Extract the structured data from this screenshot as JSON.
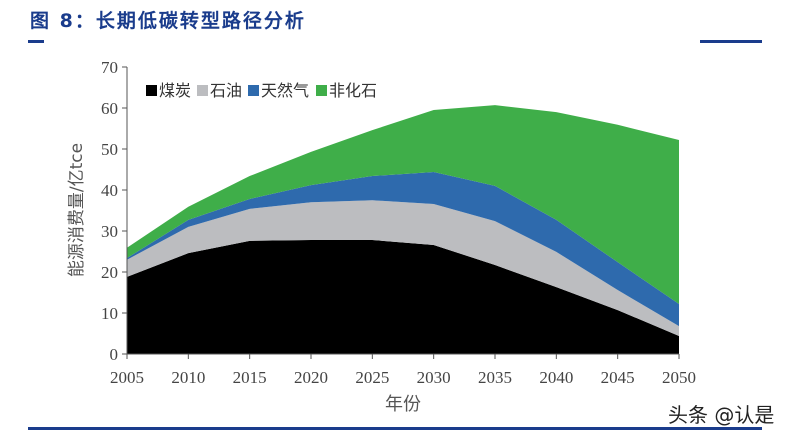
{
  "title": "图 8：长期低碳转型路径分析",
  "watermark": "头条 @认是",
  "chart_data": {
    "type": "area",
    "stacked": true,
    "title": "",
    "xlabel": "年份",
    "ylabel": "能源消费量/亿tce",
    "x": [
      2005,
      2010,
      2015,
      2020,
      2025,
      2030,
      2035,
      2040,
      2045,
      2050
    ],
    "xticks": [
      "2005",
      "2010",
      "2015",
      "2020",
      "2025",
      "2030",
      "2035",
      "2040",
      "2045",
      "2050"
    ],
    "yticks": [
      "0",
      "10",
      "20",
      "30",
      "40",
      "50",
      "60",
      "70"
    ],
    "ylim": [
      0,
      70
    ],
    "legend_position": "top-left",
    "series": [
      {
        "name": "煤炭",
        "color": "#000000",
        "values": [
          18.8,
          24.6,
          27.6,
          27.8,
          27.8,
          26.6,
          21.7,
          16.3,
          10.7,
          4.4
        ]
      },
      {
        "name": "石油",
        "color": "#bcbdc0",
        "values": [
          4.2,
          6.4,
          7.8,
          9.2,
          9.7,
          10.0,
          10.7,
          8.6,
          4.9,
          2.4
        ]
      },
      {
        "name": "天然气",
        "color": "#2e6aad",
        "values": [
          0.4,
          1.7,
          2.4,
          4.2,
          5.9,
          7.8,
          8.6,
          7.8,
          6.8,
          5.4
        ]
      },
      {
        "name": "非化石",
        "color": "#3fae49",
        "values": [
          2.5,
          3.2,
          5.6,
          8.1,
          11.2,
          15.1,
          19.7,
          26.3,
          33.5,
          40.0
        ]
      }
    ]
  }
}
